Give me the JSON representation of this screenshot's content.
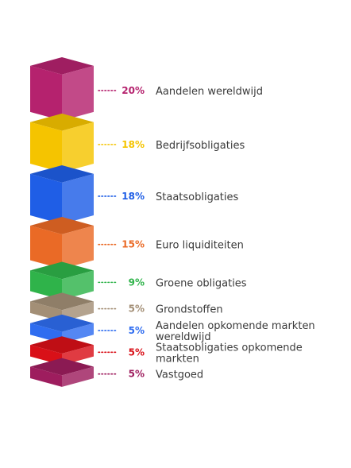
{
  "chart_data": {
    "type": "bar",
    "orientation": "stacked-cubes",
    "categories": [
      "Aandelen wereldwijd",
      "Bedrijfsobligaties",
      "Staatsobligaties",
      "Euro liquiditeiten",
      "Groene obligaties",
      "Grondstoffen",
      "Aandelen opkomende markten wereldwijd",
      "Staatsobligaties opkomende markten",
      "Vastgoed"
    ],
    "values": [
      20,
      18,
      18,
      15,
      9,
      5,
      5,
      5,
      5
    ],
    "value_labels": [
      "20%",
      "18%",
      "18%",
      "15%",
      "9%",
      "5%",
      "5%",
      "5%",
      "5%"
    ],
    "colors": [
      "#b5226e",
      "#f5c400",
      "#1f5ee6",
      "#ea6a26",
      "#2fb34a",
      "#a38f76",
      "#2f6df0",
      "#d91018",
      "#9e1d5e"
    ],
    "unit": "%"
  }
}
